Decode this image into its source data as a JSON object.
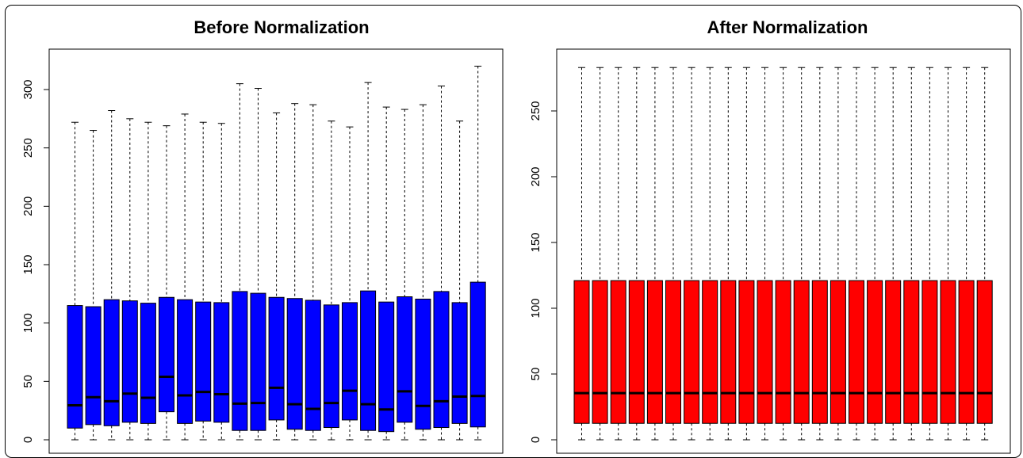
{
  "chart_data": [
    {
      "type": "boxplot",
      "title": "Before Normalization",
      "fill_color": "#0000FF",
      "ylim": [
        0,
        320
      ],
      "yticks": [
        "0",
        "50",
        "100",
        "150",
        "200",
        "250",
        "300"
      ],
      "boxes": [
        {
          "min": 0,
          "q1": 10,
          "median": 29.5,
          "q3": 115,
          "max": 272
        },
        {
          "min": 0,
          "q1": 13,
          "median": 36.5,
          "q3": 114,
          "max": 265
        },
        {
          "min": 0,
          "q1": 12,
          "median": 33,
          "q3": 120,
          "max": 282
        },
        {
          "min": 0,
          "q1": 15,
          "median": 39.5,
          "q3": 119,
          "max": 275
        },
        {
          "min": 0,
          "q1": 14,
          "median": 36,
          "q3": 117,
          "max": 272
        },
        {
          "min": 0,
          "q1": 24,
          "median": 54,
          "q3": 122,
          "max": 269
        },
        {
          "min": 0,
          "q1": 14,
          "median": 38,
          "q3": 120,
          "max": 279
        },
        {
          "min": 0,
          "q1": 16,
          "median": 41,
          "q3": 118,
          "max": 272
        },
        {
          "min": 0,
          "q1": 15,
          "median": 39,
          "q3": 117.5,
          "max": 271
        },
        {
          "min": 0,
          "q1": 8,
          "median": 31,
          "q3": 127,
          "max": 305
        },
        {
          "min": 0,
          "q1": 8,
          "median": 31.5,
          "q3": 125.5,
          "max": 301
        },
        {
          "min": 0,
          "q1": 17,
          "median": 44.5,
          "q3": 122,
          "max": 280
        },
        {
          "min": 0,
          "q1": 9,
          "median": 30.5,
          "q3": 121,
          "max": 288
        },
        {
          "min": 0,
          "q1": 8,
          "median": 26.5,
          "q3": 119.5,
          "max": 287
        },
        {
          "min": 0,
          "q1": 10.5,
          "median": 31.5,
          "q3": 115.5,
          "max": 273
        },
        {
          "min": 0,
          "q1": 17,
          "median": 42,
          "q3": 117.5,
          "max": 268
        },
        {
          "min": 0,
          "q1": 8,
          "median": 30.5,
          "q3": 127.5,
          "max": 306
        },
        {
          "min": 0,
          "q1": 7,
          "median": 26,
          "q3": 118,
          "max": 285
        },
        {
          "min": 0,
          "q1": 15,
          "median": 41.5,
          "q3": 122.5,
          "max": 283
        },
        {
          "min": 0,
          "q1": 9,
          "median": 29,
          "q3": 120.5,
          "max": 287
        },
        {
          "min": 0,
          "q1": 10.5,
          "median": 33,
          "q3": 127,
          "max": 303
        },
        {
          "min": 0,
          "q1": 14,
          "median": 37,
          "q3": 117.5,
          "max": 273
        },
        {
          "min": 0,
          "q1": 11,
          "median": 37.5,
          "q3": 135,
          "max": 320
        }
      ]
    },
    {
      "type": "boxplot",
      "title": "After Normalization",
      "fill_color": "#FF0000",
      "ylim": [
        0,
        285
      ],
      "yticks": [
        "0",
        "50",
        "100",
        "150",
        "200",
        "250"
      ],
      "boxes": [
        {
          "min": 0,
          "q1": 12.5,
          "median": 35.5,
          "q3": 121,
          "max": 283
        },
        {
          "min": 0,
          "q1": 12.5,
          "median": 35.5,
          "q3": 121,
          "max": 283
        },
        {
          "min": 0,
          "q1": 12.5,
          "median": 35.5,
          "q3": 121,
          "max": 283
        },
        {
          "min": 0,
          "q1": 12.5,
          "median": 35.5,
          "q3": 121,
          "max": 283
        },
        {
          "min": 0,
          "q1": 12.5,
          "median": 35.5,
          "q3": 121,
          "max": 283
        },
        {
          "min": 0,
          "q1": 12.5,
          "median": 35.5,
          "q3": 121,
          "max": 283
        },
        {
          "min": 0,
          "q1": 12.5,
          "median": 35.5,
          "q3": 121,
          "max": 283
        },
        {
          "min": 0,
          "q1": 12.5,
          "median": 35.5,
          "q3": 121,
          "max": 283
        },
        {
          "min": 0,
          "q1": 12.5,
          "median": 35.5,
          "q3": 121,
          "max": 283
        },
        {
          "min": 0,
          "q1": 12.5,
          "median": 35.5,
          "q3": 121,
          "max": 283
        },
        {
          "min": 0,
          "q1": 12.5,
          "median": 35.5,
          "q3": 121,
          "max": 283
        },
        {
          "min": 0,
          "q1": 12.5,
          "median": 35.5,
          "q3": 121,
          "max": 283
        },
        {
          "min": 0,
          "q1": 12.5,
          "median": 35.5,
          "q3": 121,
          "max": 283
        },
        {
          "min": 0,
          "q1": 12.5,
          "median": 35.5,
          "q3": 121,
          "max": 283
        },
        {
          "min": 0,
          "q1": 12.5,
          "median": 35.5,
          "q3": 121,
          "max": 283
        },
        {
          "min": 0,
          "q1": 12.5,
          "median": 35.5,
          "q3": 121,
          "max": 283
        },
        {
          "min": 0,
          "q1": 12.5,
          "median": 35.5,
          "q3": 121,
          "max": 283
        },
        {
          "min": 0,
          "q1": 12.5,
          "median": 35.5,
          "q3": 121,
          "max": 283
        },
        {
          "min": 0,
          "q1": 12.5,
          "median": 35.5,
          "q3": 121,
          "max": 283
        },
        {
          "min": 0,
          "q1": 12.5,
          "median": 35.5,
          "q3": 121,
          "max": 283
        },
        {
          "min": 0,
          "q1": 12.5,
          "median": 35.5,
          "q3": 121,
          "max": 283
        },
        {
          "min": 0,
          "q1": 12.5,
          "median": 35.5,
          "q3": 121,
          "max": 283
        },
        {
          "min": 0,
          "q1": 12.5,
          "median": 35.5,
          "q3": 121,
          "max": 283
        }
      ]
    }
  ]
}
